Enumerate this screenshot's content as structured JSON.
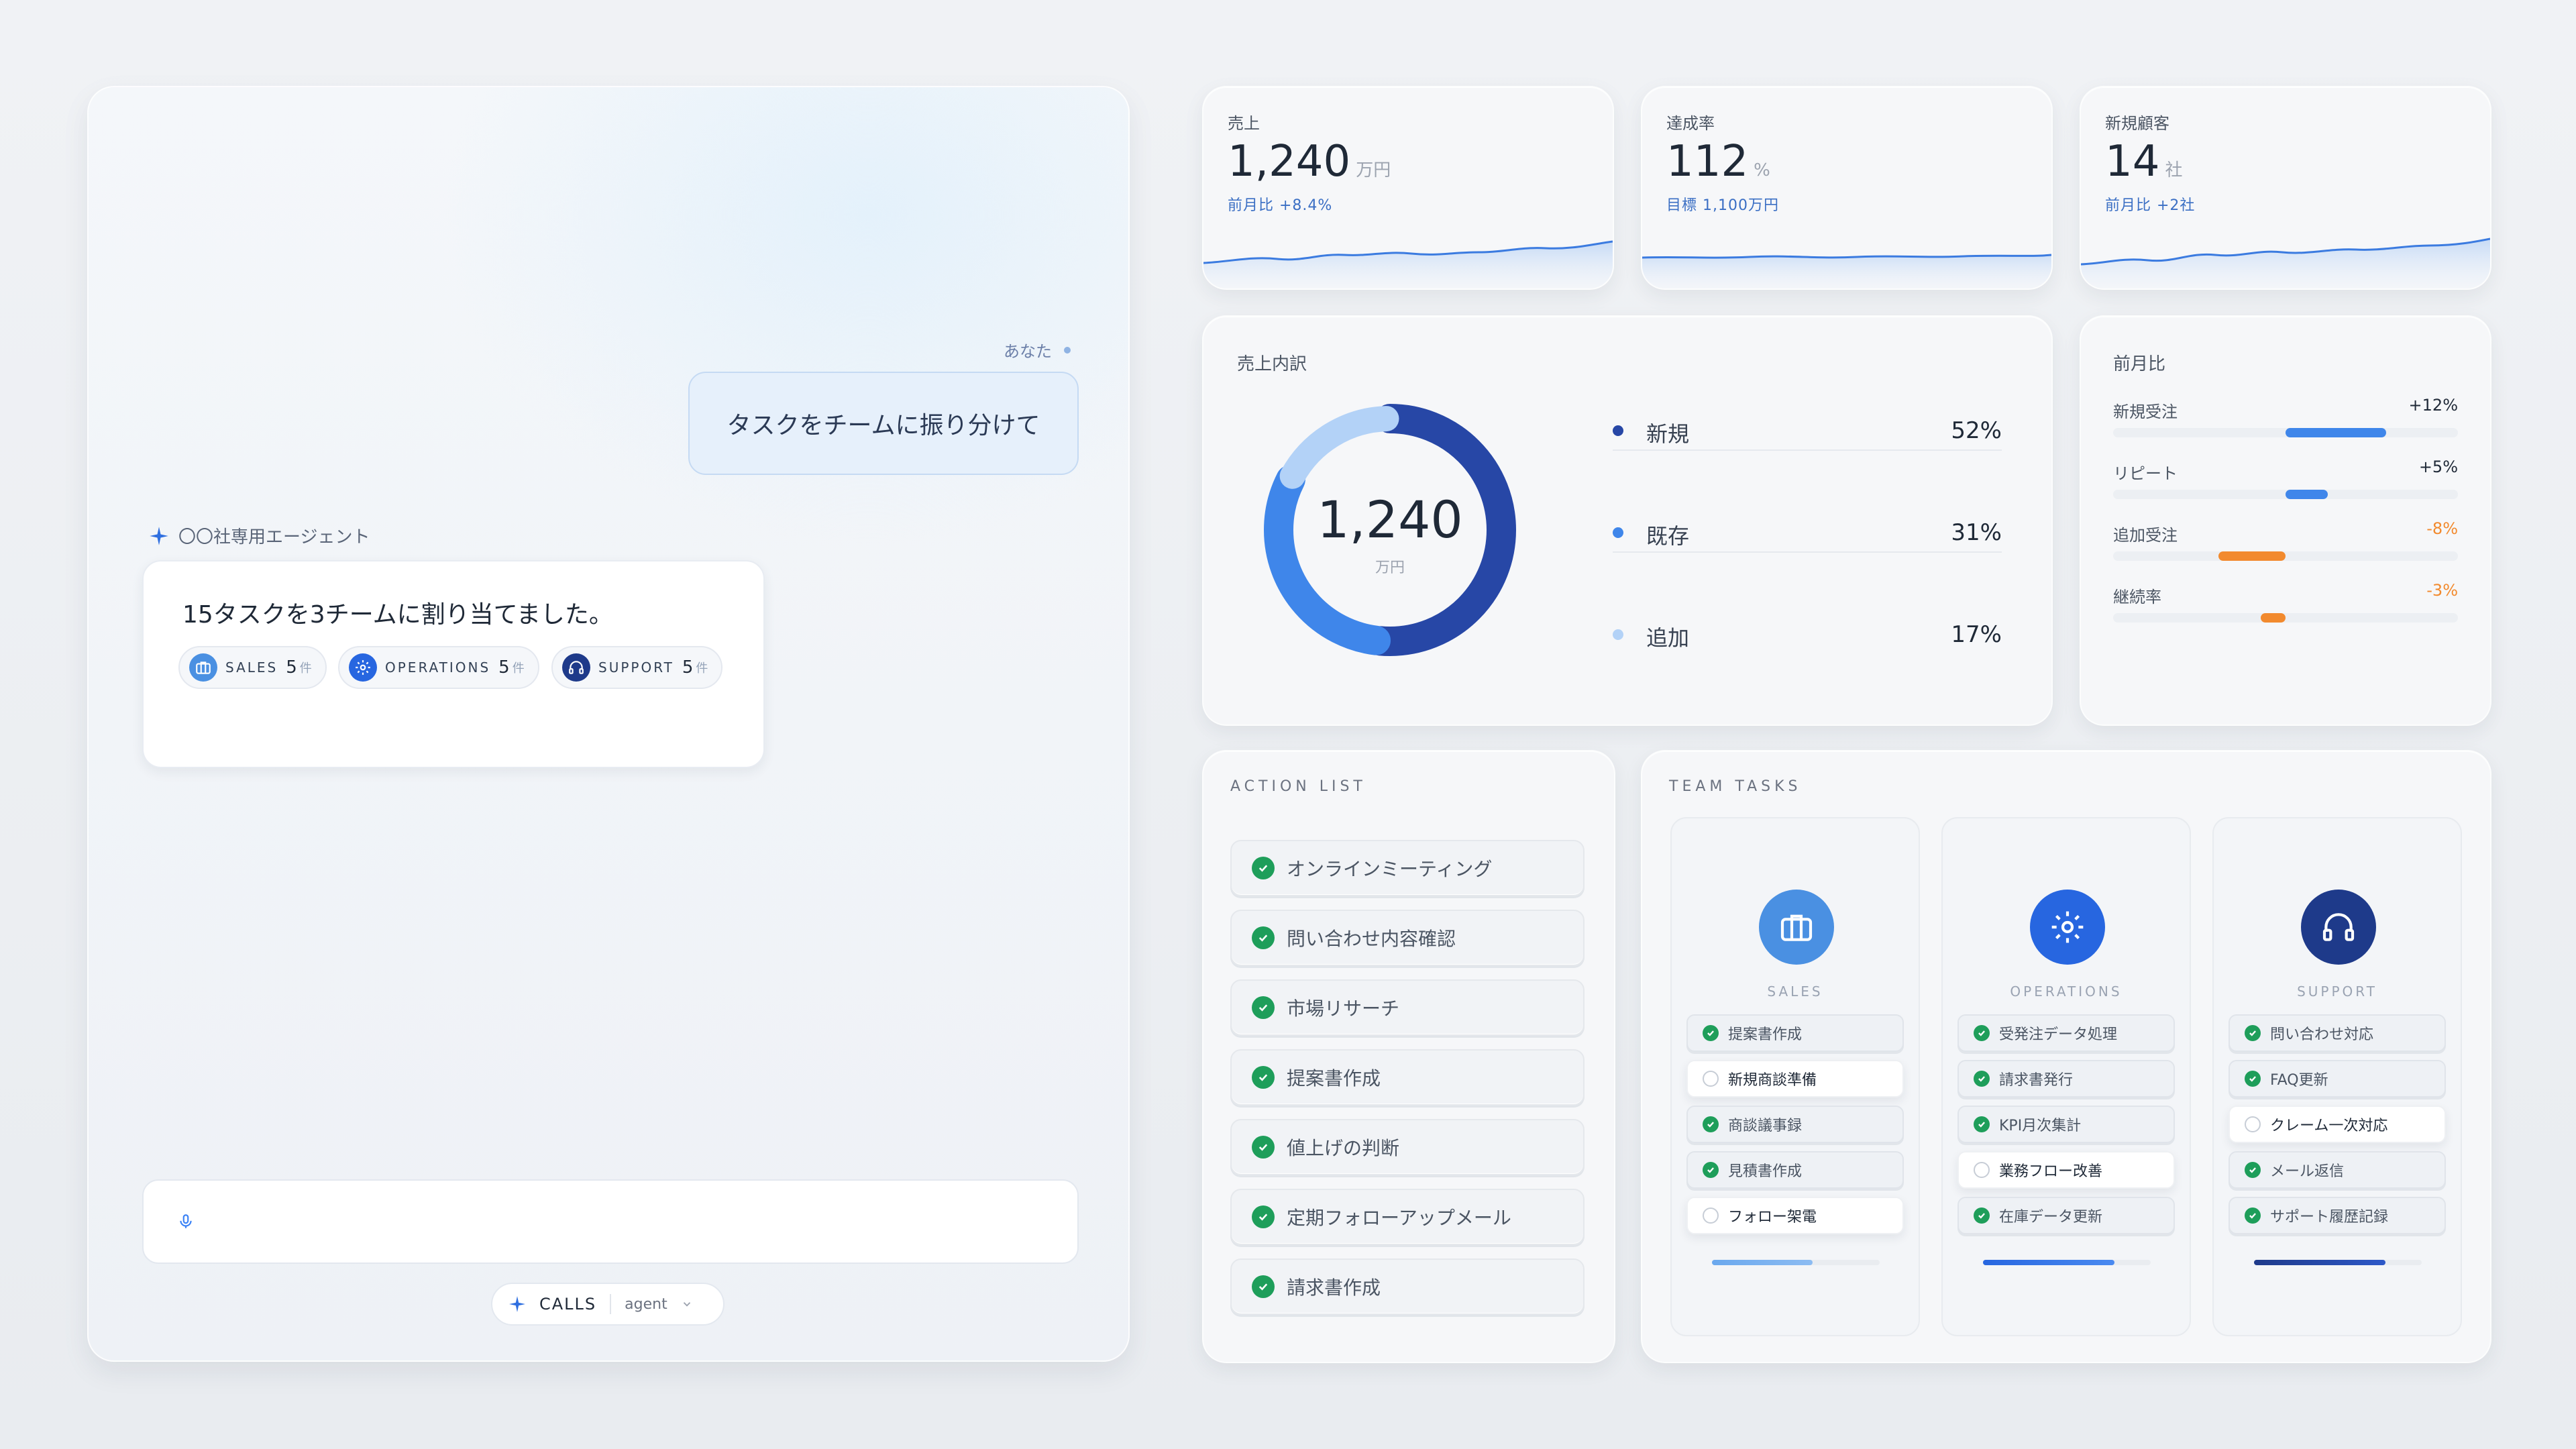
{
  "chat": {
    "you_label": "あなた",
    "user_message": "タスクをチームに振り分けて",
    "agent_name": "〇〇社専用エージェント",
    "agent_message": "15タスクを3チームに割り当てました。",
    "chips": [
      {
        "label": "SALES",
        "count": "5",
        "unit": "件",
        "icon": "briefcase-icon"
      },
      {
        "label": "OPERATIONS",
        "count": "5",
        "unit": "件",
        "icon": "gear-icon"
      },
      {
        "label": "SUPPORT",
        "count": "5",
        "unit": "件",
        "icon": "headphones-icon"
      }
    ],
    "input_value": "",
    "calls_label": "CALLS",
    "calls_mode": "agent"
  },
  "kpis": [
    {
      "label": "売上",
      "value": "1,240",
      "unit": "万円",
      "sub": "前月比 +8.4%"
    },
    {
      "label": "達成率",
      "value": "112",
      "unit": "%",
      "sub": "目標 1,100万円"
    },
    {
      "label": "新規顧客",
      "value": "14",
      "unit": "社",
      "sub": "前月比 +2社"
    }
  ],
  "breakdown": {
    "title": "売上内訳",
    "center_value": "1,240",
    "center_unit": "万円",
    "items": [
      {
        "name": "新規",
        "value": "52%",
        "pct": 52,
        "color": "#2747a6"
      },
      {
        "name": "既存",
        "value": "31%",
        "pct": 31,
        "color": "#3f86ea"
      },
      {
        "name": "追加",
        "value": "17%",
        "pct": 17,
        "color": "#b3d2f7"
      }
    ]
  },
  "mom": {
    "title": "前月比",
    "rows": [
      {
        "name": "新規受注",
        "value": "+12%",
        "pct": 12,
        "color": "#3f86ea"
      },
      {
        "name": "リピート",
        "value": "+5%",
        "pct": 5,
        "color": "#3f86ea"
      },
      {
        "name": "追加受注",
        "value": "-8%",
        "pct": -8,
        "color": "#f28a2e"
      },
      {
        "name": "継続率",
        "value": "-3%",
        "pct": -3,
        "color": "#f28a2e"
      }
    ]
  },
  "action_list": {
    "title": "ACTION LIST",
    "items": [
      "オンラインミーティング",
      "問い合わせ内容確認",
      "市場リサーチ",
      "提案書作成",
      "値上げの判断",
      "定期フォローアップメール",
      "請求書作成"
    ]
  },
  "team_tasks": {
    "title": "TEAM TASKS",
    "teams": [
      {
        "name": "SALES",
        "icon": "briefcase-icon",
        "color": "#4a90e2",
        "tasks": [
          {
            "text": "提案書作成",
            "done": true
          },
          {
            "text": "新規商談準備",
            "done": false
          },
          {
            "text": "商談議事録",
            "done": true
          },
          {
            "text": "見積書作成",
            "done": true
          },
          {
            "text": "フォロー架電",
            "done": false
          }
        ]
      },
      {
        "name": "OPERATIONS",
        "icon": "gear-icon",
        "color": "#2766e0",
        "tasks": [
          {
            "text": "受発注データ処理",
            "done": true
          },
          {
            "text": "請求書発行",
            "done": true
          },
          {
            "text": "KPI月次集計",
            "done": true
          },
          {
            "text": "業務フロー改善",
            "done": false
          },
          {
            "text": "在庫データ更新",
            "done": true
          }
        ]
      },
      {
        "name": "SUPPORT",
        "icon": "headphones-icon",
        "color": "#1e3a8a",
        "tasks": [
          {
            "text": "問い合わせ対応",
            "done": true
          },
          {
            "text": "FAQ更新",
            "done": true
          },
          {
            "text": "クレーム一次対応",
            "done": false
          },
          {
            "text": "メール返信",
            "done": true
          },
          {
            "text": "サポート履歴記録",
            "done": true
          }
        ]
      }
    ]
  }
}
